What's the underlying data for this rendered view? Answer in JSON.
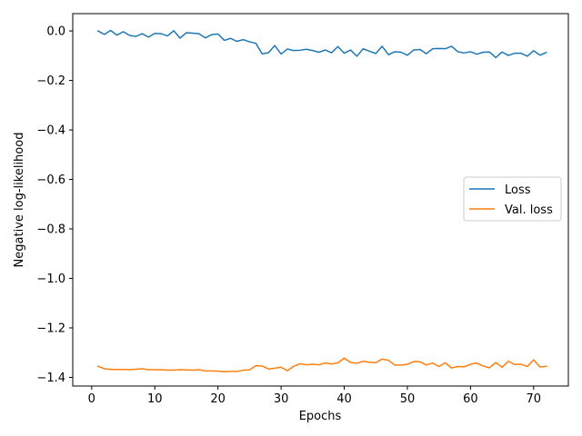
{
  "chart_data": {
    "type": "line",
    "xlabel": "Epochs",
    "ylabel": "Negative log-likelihood",
    "xlim": [
      -3,
      75.5
    ],
    "ylim": [
      -1.435,
      0.07
    ],
    "xticks": [
      0,
      10,
      20,
      30,
      40,
      50,
      60,
      70
    ],
    "yticks": [
      0.0,
      -0.2,
      -0.4,
      -0.6,
      -0.8,
      -1.0,
      -1.2,
      -1.4
    ],
    "ytick_labels": [
      "0.0",
      "−0.2",
      "−0.4",
      "−0.6",
      "−0.8",
      "−1.0",
      "−1.2",
      "−1.4"
    ],
    "grid": false,
    "legend_position": "center-right",
    "x": [
      1,
      2,
      3,
      4,
      5,
      6,
      7,
      8,
      9,
      10,
      11,
      12,
      13,
      14,
      15,
      16,
      17,
      18,
      19,
      20,
      21,
      22,
      23,
      24,
      25,
      26,
      27,
      28,
      29,
      30,
      31,
      32,
      33,
      34,
      35,
      36,
      37,
      38,
      39,
      40,
      41,
      42,
      43,
      44,
      45,
      46,
      47,
      48,
      49,
      50,
      51,
      52,
      53,
      54,
      55,
      56,
      57,
      58,
      59,
      60,
      61,
      62,
      63,
      64,
      65,
      66,
      67,
      68,
      69,
      70,
      71,
      72
    ],
    "series": [
      {
        "name": "Loss",
        "color": "#1f77b4",
        "values": [
          0.0,
          -0.014,
          0.002,
          -0.017,
          -0.003,
          -0.018,
          -0.022,
          -0.011,
          -0.025,
          -0.01,
          -0.011,
          -0.02,
          0.001,
          -0.029,
          -0.007,
          -0.009,
          -0.011,
          -0.028,
          -0.015,
          -0.012,
          -0.038,
          -0.03,
          -0.042,
          -0.035,
          -0.044,
          -0.05,
          -0.093,
          -0.088,
          -0.059,
          -0.093,
          -0.073,
          -0.079,
          -0.078,
          -0.074,
          -0.079,
          -0.086,
          -0.077,
          -0.088,
          -0.063,
          -0.09,
          -0.077,
          -0.102,
          -0.072,
          -0.082,
          -0.091,
          -0.062,
          -0.096,
          -0.084,
          -0.086,
          -0.098,
          -0.077,
          -0.075,
          -0.092,
          -0.072,
          -0.071,
          -0.072,
          -0.062,
          -0.084,
          -0.089,
          -0.084,
          -0.094,
          -0.086,
          -0.085,
          -0.108,
          -0.085,
          -0.099,
          -0.09,
          -0.09,
          -0.102,
          -0.08,
          -0.098,
          -0.087
        ]
      },
      {
        "name": "Val. loss",
        "color": "#ff7f0e",
        "values": [
          -1.355,
          -1.365,
          -1.368,
          -1.368,
          -1.368,
          -1.369,
          -1.367,
          -1.365,
          -1.369,
          -1.369,
          -1.369,
          -1.371,
          -1.371,
          -1.369,
          -1.37,
          -1.371,
          -1.369,
          -1.374,
          -1.374,
          -1.375,
          -1.377,
          -1.376,
          -1.376,
          -1.371,
          -1.37,
          -1.353,
          -1.354,
          -1.366,
          -1.363,
          -1.359,
          -1.373,
          -1.355,
          -1.345,
          -1.349,
          -1.347,
          -1.349,
          -1.342,
          -1.346,
          -1.341,
          -1.322,
          -1.34,
          -1.343,
          -1.335,
          -1.339,
          -1.341,
          -1.326,
          -1.331,
          -1.35,
          -1.35,
          -1.347,
          -1.336,
          -1.337,
          -1.35,
          -1.342,
          -1.356,
          -1.341,
          -1.362,
          -1.356,
          -1.357,
          -1.347,
          -1.342,
          -1.354,
          -1.361,
          -1.34,
          -1.359,
          -1.335,
          -1.348,
          -1.347,
          -1.356,
          -1.329,
          -1.358,
          -1.355
        ]
      }
    ]
  }
}
